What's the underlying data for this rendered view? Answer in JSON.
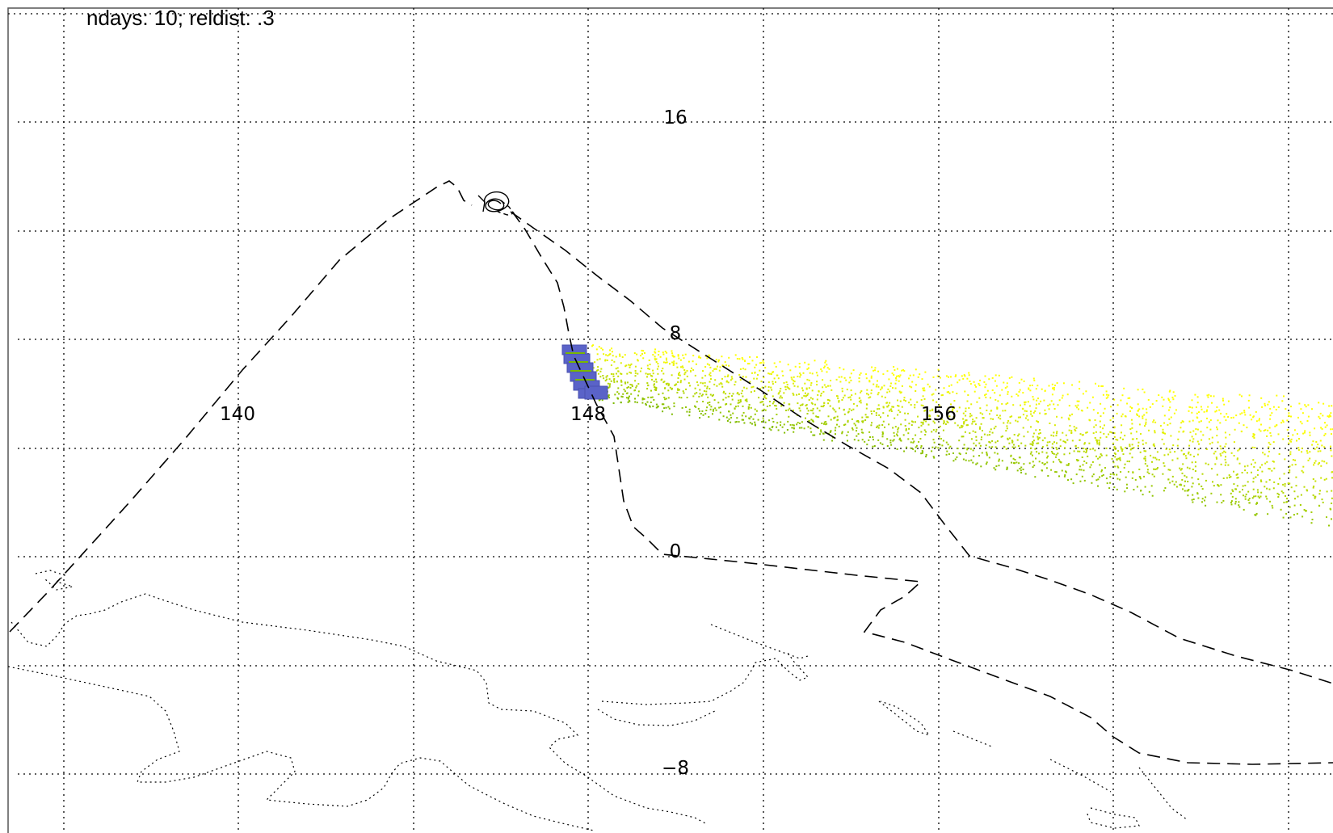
{
  "title": "ndays: 10; reldist: .3",
  "map": {
    "projection": "lon-lat grid",
    "longitude_labels": [
      "140",
      "148",
      "156"
    ],
    "latitude_labels": [
      "16",
      "8",
      "0",
      "−8"
    ],
    "gridline_style": "dotted",
    "coastline_style": "dotted",
    "track_style": "dashed",
    "colors": {
      "grid": "#000000",
      "coast": "#000000",
      "track": "#000000",
      "source_region": "#5a63c8",
      "dispersion_near": "#7ab800",
      "dispersion_far": "#ffff00"
    }
  }
}
